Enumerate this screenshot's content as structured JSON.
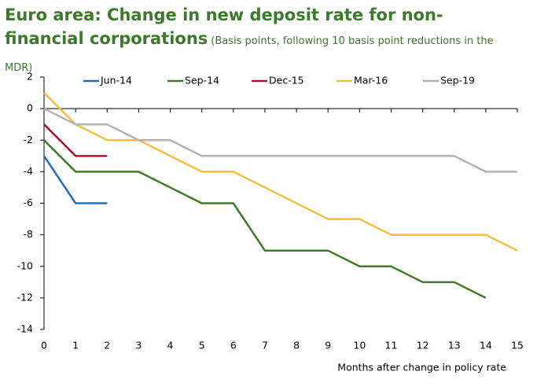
{
  "chart_data": {
    "type": "line",
    "title": "Euro area: Change in new deposit rate for non-financial corporations",
    "subtitle": "(Basis points, following 10 basis point reductions in the MDR)",
    "x_label": "Months after change in policy rate",
    "x": [
      0,
      1,
      2,
      3,
      4,
      5,
      6,
      7,
      8,
      9,
      10,
      11,
      12,
      13,
      14,
      15
    ],
    "xlim": [
      0,
      15
    ],
    "xticks": [
      0,
      1,
      2,
      3,
      4,
      5,
      6,
      7,
      8,
      9,
      10,
      11,
      12,
      13,
      14,
      15
    ],
    "ylim": [
      -14,
      2
    ],
    "yticks": [
      2,
      0,
      -2,
      -4,
      -6,
      -8,
      -10,
      -12,
      -14
    ],
    "legend": "top",
    "series": [
      {
        "name": "Jun-14",
        "color": "#1f6fc1",
        "values": [
          -3,
          -6,
          -6,
          null,
          null,
          null,
          null,
          null,
          null,
          null,
          null,
          null,
          null,
          null,
          null,
          null
        ]
      },
      {
        "name": "Sep-14",
        "color": "#3c7d2b",
        "values": [
          -2,
          -4,
          -4,
          -4,
          -5,
          -6,
          -6,
          -9,
          -9,
          -9,
          -10,
          -10,
          -11,
          -11,
          -12,
          null
        ]
      },
      {
        "name": "Dec-15",
        "color": "#a3182b",
        "values": [
          -1,
          -3,
          -3,
          null,
          null,
          null,
          null,
          null,
          null,
          null,
          null,
          null,
          null,
          null,
          null,
          null
        ]
      },
      {
        "name": "Mar-16",
        "color": "#f2bd42",
        "values": [
          1,
          -1,
          -2,
          -2,
          -3,
          -4,
          -4,
          -5,
          -6,
          -7,
          -7,
          -8,
          -8,
          -8,
          -8,
          -9
        ]
      },
      {
        "name": "Sep-19",
        "color": "#b3b3b3",
        "values": [
          0,
          -1,
          -1,
          -2,
          -2,
          -3,
          -3,
          -3,
          -3,
          -3,
          -3,
          -3,
          -3,
          -3,
          -4,
          -4
        ]
      }
    ]
  }
}
